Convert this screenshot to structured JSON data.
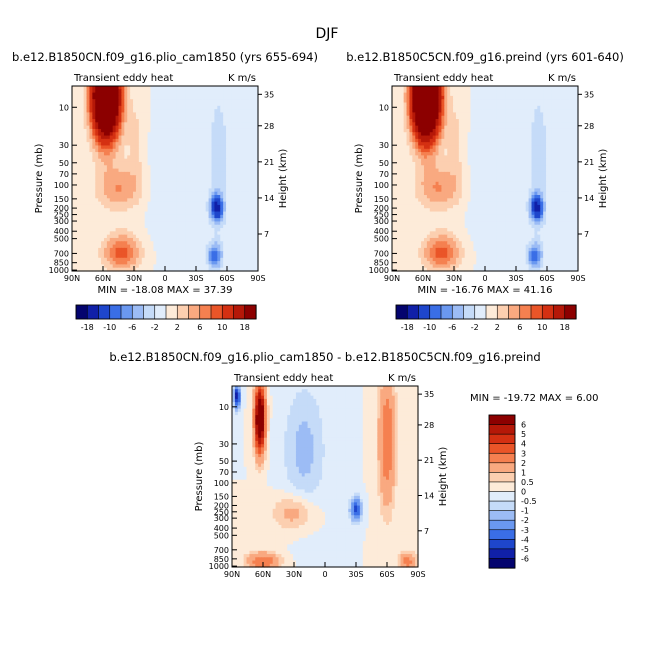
{
  "figure": {
    "title": "DJF"
  },
  "chart_data": [
    {
      "type": "heatmap",
      "title": "b.e12.B1850CN.f09_g16.plio_cam1850 (yrs 655-694)",
      "variable_label": "Transient eddy heat",
      "units_label": "K m/s",
      "ylabel": "Pressure (mb)",
      "ylabel_right": "Height (km)",
      "x_ticks": [
        "90N",
        "60N",
        "30N",
        "0",
        "30S",
        "60S",
        "90S"
      ],
      "y_ticks": [
        "10",
        "30",
        "50",
        "70",
        "100",
        "150",
        "200",
        "250",
        "300",
        "400",
        "500",
        "700",
        "850",
        "1000"
      ],
      "y_ticks_right": [
        "35",
        "28",
        "21",
        "14",
        "7"
      ],
      "stats_text": "MIN = -18.08   MAX = 37.39",
      "min": -18.08,
      "max": 37.39,
      "colorbar_labels": [
        "-18",
        "-10",
        "-6",
        "-2",
        "2",
        "6",
        "10",
        "18"
      ]
    },
    {
      "type": "heatmap",
      "title": "b.e12.B1850C5CN.f09_g16.preind (yrs 601-640)",
      "variable_label": "Transient eddy heat",
      "units_label": "K m/s",
      "ylabel": "Pressure (mb)",
      "ylabel_right": "Height (km)",
      "x_ticks": [
        "90N",
        "60N",
        "30N",
        "0",
        "30S",
        "60S",
        "90S"
      ],
      "y_ticks": [
        "10",
        "30",
        "50",
        "70",
        "100",
        "150",
        "200",
        "250",
        "300",
        "400",
        "500",
        "700",
        "850",
        "1000"
      ],
      "y_ticks_right": [
        "35",
        "28",
        "21",
        "14",
        "7"
      ],
      "stats_text": "MIN = -16.76   MAX = 41.16",
      "min": -16.76,
      "max": 41.16,
      "colorbar_labels": [
        "-18",
        "-10",
        "-6",
        "-2",
        "2",
        "6",
        "10",
        "18"
      ]
    },
    {
      "type": "heatmap",
      "title": "b.e12.B1850CN.f09_g16.plio_cam1850 - b.e12.B1850C5CN.f09_g16.preind",
      "variable_label": "Transient eddy heat",
      "units_label": "K m/s",
      "ylabel": "Pressure (mb)",
      "ylabel_right": "Height (km)",
      "x_ticks": [
        "90N",
        "60N",
        "30N",
        "0",
        "30S",
        "60S",
        "90S"
      ],
      "y_ticks": [
        "10",
        "30",
        "50",
        "70",
        "100",
        "150",
        "200",
        "250",
        "300",
        "400",
        "500",
        "700",
        "850",
        "1000"
      ],
      "y_ticks_right": [
        "35",
        "28",
        "21",
        "14",
        "7"
      ],
      "stats_text": "MIN = -19.72   MAX =   6.00",
      "min": -19.72,
      "max": 6.0,
      "colorbar_labels": [
        "6",
        "5",
        "4",
        "3",
        "2",
        "1",
        "0.5",
        "0",
        "-0.5",
        "-1",
        "-2",
        "-3",
        "-4",
        "-5",
        "-6"
      ]
    }
  ],
  "colors": {
    "main_scale": [
      "#04046e",
      "#1020a8",
      "#1e46cc",
      "#3a6ee6",
      "#6a98f0",
      "#9cbcf5",
      "#c5dbf8",
      "#e1edfb",
      "#fdebd9",
      "#fccfb0",
      "#f9a980",
      "#f58050",
      "#ea5528",
      "#d43012",
      "#b51808",
      "#8c0000"
    ],
    "diff_scale": [
      "#8c0000",
      "#b51808",
      "#d43012",
      "#ea5528",
      "#f58050",
      "#f9a980",
      "#fccfb0",
      "#fdebd9",
      "#e1edfb",
      "#c5dbf8",
      "#9cbcf5",
      "#6a98f0",
      "#3a6ee6",
      "#1e46cc",
      "#1020a8",
      "#04046e"
    ]
  }
}
